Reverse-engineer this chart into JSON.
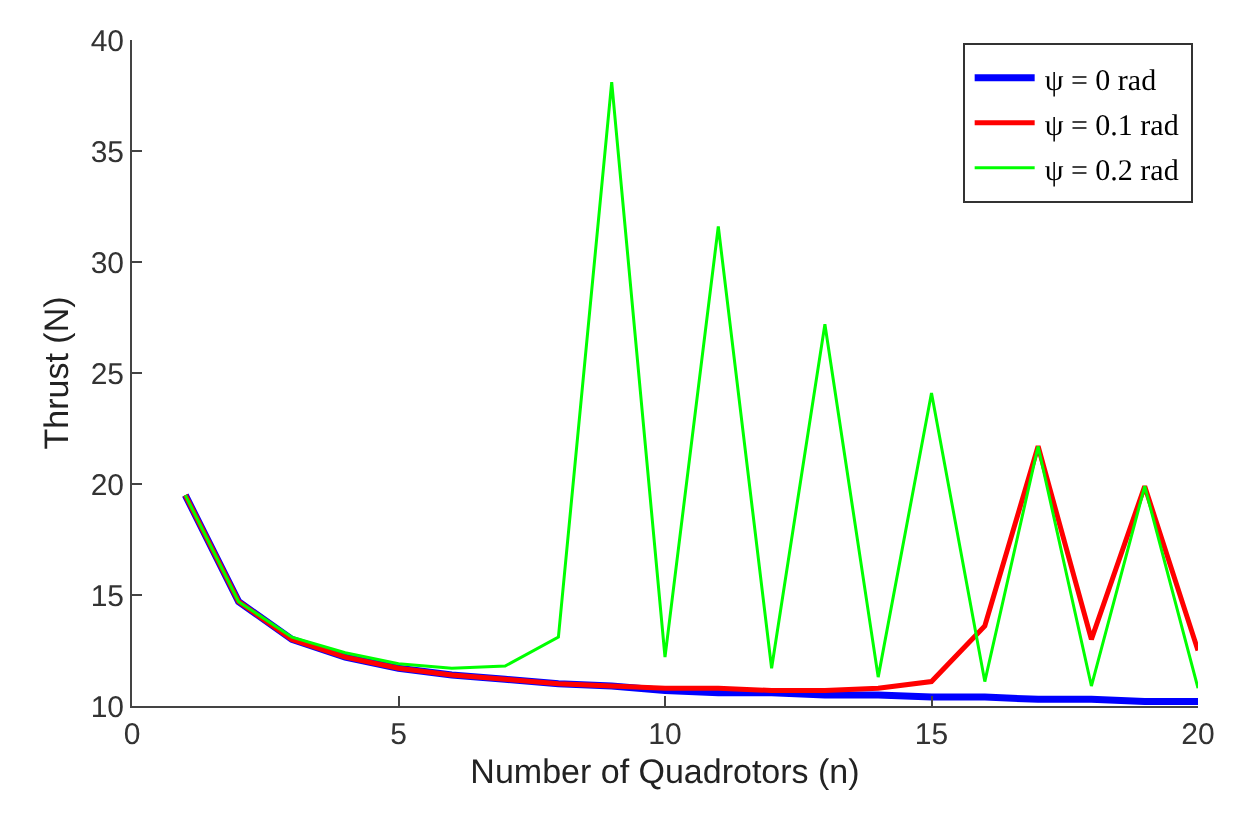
{
  "chart_data": {
    "type": "line",
    "xlabel": "Number of Quadrotors (n)",
    "ylabel": "Thrust (N)",
    "x": [
      1,
      2,
      3,
      4,
      5,
      6,
      7,
      8,
      9,
      10,
      11,
      12,
      13,
      14,
      15,
      16,
      17,
      18,
      19,
      20
    ],
    "xlim": [
      0,
      20
    ],
    "xticks": [
      0,
      5,
      10,
      15,
      20
    ],
    "ylim": [
      10,
      40
    ],
    "yticks": [
      10,
      15,
      20,
      25,
      30,
      35,
      40
    ],
    "grid": false,
    "legend": "top right",
    "marker": "none",
    "line_style": "solid",
    "series": [
      {
        "name": "ψ = 0 rad",
        "color": "#0000ff",
        "values": [
          19.5,
          14.7,
          13.0,
          12.2,
          11.7,
          11.4,
          11.2,
          11.0,
          10.9,
          10.7,
          10.6,
          10.6,
          10.5,
          10.5,
          10.4,
          10.4,
          10.3,
          10.3,
          10.2,
          10.2
        ]
      },
      {
        "name": "ψ = 0.1 rad",
        "color": "#ff0000",
        "values": [
          19.5,
          14.7,
          13.0,
          12.2,
          11.7,
          11.4,
          11.2,
          11.0,
          10.9,
          10.8,
          10.8,
          10.7,
          10.7,
          10.8,
          11.1,
          13.6,
          21.7,
          13.0,
          19.9,
          12.5
        ]
      },
      {
        "name": "ψ = 0.2 rad",
        "color": "#00ff00",
        "values": [
          19.5,
          14.7,
          13.1,
          12.4,
          11.9,
          11.7,
          11.8,
          13.1,
          38.1,
          12.2,
          31.6,
          11.7,
          27.2,
          11.3,
          24.1,
          11.1,
          21.7,
          10.9,
          19.9,
          10.8
        ]
      }
    ]
  }
}
